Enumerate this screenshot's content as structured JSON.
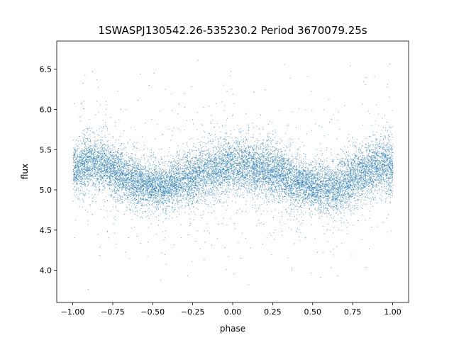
{
  "chart_data": {
    "type": "scatter",
    "title": "1SWASPJ130542.26-535230.2 Period 3670079.25s",
    "xlabel": "phase",
    "ylabel": "flux",
    "xlim": [
      -1.1,
      1.1
    ],
    "ylim": [
      3.6,
      6.85
    ],
    "xticks": [
      -1.0,
      -0.75,
      -0.5,
      -0.25,
      0.0,
      0.25,
      0.5,
      0.75,
      1.0
    ],
    "xtick_labels": [
      "−1.00",
      "−0.75",
      "−0.50",
      "−0.25",
      "0.00",
      "0.25",
      "0.50",
      "0.75",
      "1.00"
    ],
    "yticks": [
      4.0,
      4.5,
      5.0,
      5.5,
      6.0,
      6.5
    ],
    "ytick_labels": [
      "4.0",
      "4.5",
      "5.0",
      "5.5",
      "6.0",
      "6.5"
    ],
    "grid": false,
    "point_color": "#1f77b4",
    "point_count": 14000,
    "phase_range": [
      -1.0,
      1.0
    ],
    "profile": {
      "phase": [
        -1.0,
        -0.9,
        -0.8,
        -0.7,
        -0.6,
        -0.5,
        -0.4,
        -0.3,
        -0.2,
        -0.1,
        0.0,
        0.1,
        0.2,
        0.3,
        0.4,
        0.5,
        0.6,
        0.7,
        0.8,
        0.9,
        1.0
      ],
      "median_flux": [
        5.25,
        5.35,
        5.3,
        5.2,
        5.1,
        5.05,
        5.05,
        5.15,
        5.2,
        5.25,
        5.3,
        5.3,
        5.25,
        5.2,
        5.1,
        5.05,
        5.0,
        5.1,
        5.2,
        5.3,
        5.3
      ],
      "scatter": [
        0.25,
        0.3,
        0.3,
        0.3,
        0.28,
        0.25,
        0.25,
        0.3,
        0.3,
        0.3,
        0.35,
        0.3,
        0.3,
        0.3,
        0.28,
        0.25,
        0.3,
        0.3,
        0.3,
        0.3,
        0.35
      ]
    }
  }
}
